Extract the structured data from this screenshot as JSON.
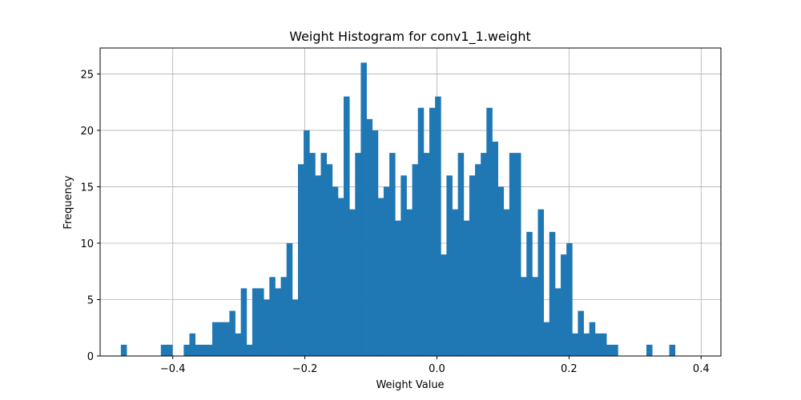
{
  "chart_data": {
    "type": "bar",
    "title": "Weight Histogram for conv1_1.weight",
    "xlabel": "Weight Value",
    "ylabel": "Frequency",
    "xlim": [
      -0.51,
      0.43
    ],
    "ylim": [
      0,
      27.3
    ],
    "grid": true,
    "bar_color": "#1f77b4",
    "bin_start": -0.4786,
    "bin_width": 0.00865,
    "counts": [
      1,
      0,
      0,
      0,
      0,
      0,
      0,
      1,
      1,
      0,
      0,
      1,
      2,
      1,
      1,
      1,
      3,
      3,
      3,
      4,
      2,
      6,
      1,
      6,
      6,
      5,
      7,
      6,
      7,
      10,
      5,
      17,
      20,
      18,
      16,
      18,
      17,
      15,
      14,
      23,
      13,
      18,
      26,
      21,
      20,
      14,
      15,
      18,
      12,
      16,
      13,
      17,
      22,
      18,
      22,
      23,
      9,
      16,
      13,
      18,
      12,
      16,
      17,
      18,
      22,
      19,
      15,
      13,
      18,
      18,
      7,
      11,
      7,
      13,
      3,
      11,
      6,
      9,
      10,
      2,
      4,
      2,
      3,
      2,
      2,
      1,
      1,
      0,
      0,
      0,
      0,
      0,
      1,
      0,
      0,
      0,
      1
    ],
    "xticks": [
      "−0.4",
      "−0.2",
      "0.0",
      "0.2",
      "0.4"
    ],
    "xtick_values": [
      -0.4,
      -0.2,
      0.0,
      0.2,
      0.4
    ],
    "yticks": [
      "0",
      "5",
      "10",
      "15",
      "20",
      "25"
    ],
    "ytick_values": [
      0,
      5,
      10,
      15,
      20,
      25
    ]
  }
}
